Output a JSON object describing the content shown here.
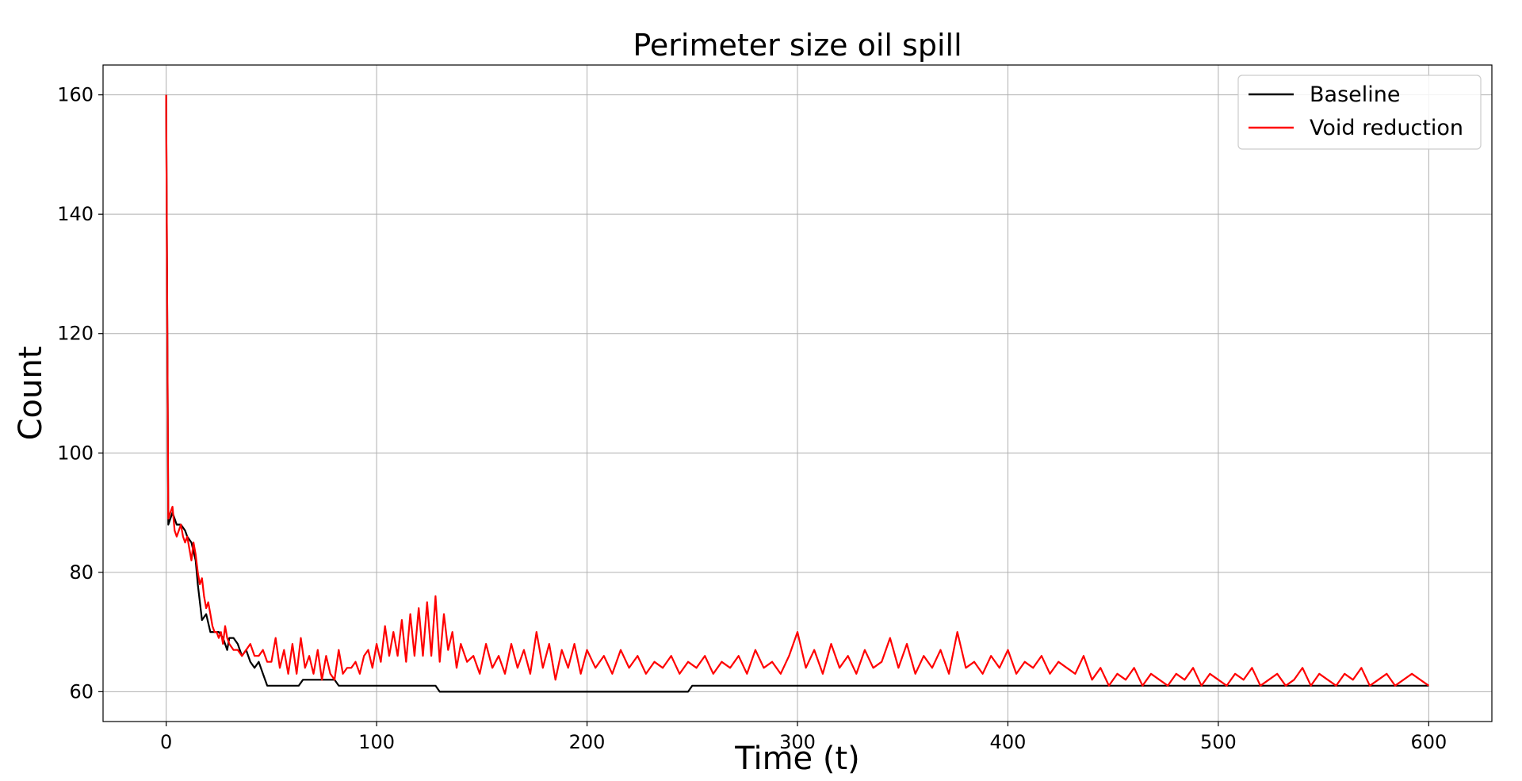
{
  "chart_data": {
    "type": "line",
    "title": "Perimeter size oil spill",
    "xlabel": "Time (t)",
    "ylabel": "Count",
    "xlim": [
      -30,
      630
    ],
    "ylim": [
      55,
      165
    ],
    "xticks": [
      0,
      100,
      200,
      300,
      400,
      500,
      600
    ],
    "yticks": [
      60,
      80,
      100,
      120,
      140,
      160
    ],
    "grid": true,
    "legend_position": "top-right",
    "series": [
      {
        "name": "Baseline",
        "color": "#000000",
        "x": [
          0,
          1,
          3,
          5,
          7,
          9,
          10,
          12,
          14,
          15,
          17,
          19,
          21,
          23,
          25,
          27,
          29,
          30,
          32,
          34,
          36,
          38,
          40,
          42,
          44,
          46,
          48,
          50,
          60,
          63,
          65,
          75,
          80,
          82,
          100,
          115,
          128,
          130,
          150,
          200,
          248,
          250,
          300,
          350,
          400,
          450,
          500,
          550,
          600
        ],
        "values": [
          160,
          88,
          90,
          88,
          88,
          87,
          86,
          85,
          82,
          78,
          72,
          73,
          70,
          70,
          70,
          69,
          67,
          69,
          69,
          68,
          66,
          67,
          65,
          64,
          65,
          63,
          61,
          61,
          61,
          61,
          62,
          62,
          62,
          61,
          61,
          61,
          61,
          60,
          60,
          60,
          60,
          61,
          61,
          61,
          61,
          61,
          61,
          61,
          61
        ]
      },
      {
        "name": "Void reduction",
        "color": "#ff0000",
        "x": [
          0,
          1,
          2,
          3,
          4,
          5,
          6,
          7,
          8,
          9,
          10,
          11,
          12,
          13,
          14,
          15,
          16,
          17,
          18,
          19,
          20,
          21,
          22,
          23,
          24,
          25,
          26,
          27,
          28,
          29,
          30,
          32,
          34,
          36,
          38,
          40,
          42,
          44,
          46,
          48,
          50,
          52,
          54,
          56,
          58,
          60,
          62,
          64,
          66,
          68,
          70,
          72,
          74,
          76,
          78,
          80,
          82,
          84,
          86,
          88,
          90,
          92,
          94,
          96,
          98,
          100,
          102,
          104,
          106,
          108,
          110,
          112,
          114,
          116,
          118,
          120,
          122,
          124,
          126,
          128,
          130,
          132,
          134,
          136,
          138,
          140,
          143,
          146,
          149,
          152,
          155,
          158,
          161,
          164,
          167,
          170,
          173,
          176,
          179,
          182,
          185,
          188,
          191,
          194,
          197,
          200,
          204,
          208,
          212,
          216,
          220,
          224,
          228,
          232,
          236,
          240,
          244,
          248,
          252,
          256,
          260,
          264,
          268,
          272,
          276,
          280,
          284,
          288,
          292,
          296,
          300,
          304,
          308,
          312,
          316,
          320,
          324,
          328,
          332,
          336,
          340,
          344,
          348,
          352,
          356,
          360,
          364,
          368,
          372,
          376,
          380,
          384,
          388,
          392,
          396,
          400,
          404,
          408,
          412,
          416,
          420,
          424,
          428,
          432,
          436,
          440,
          444,
          448,
          452,
          456,
          460,
          464,
          468,
          472,
          476,
          480,
          484,
          488,
          492,
          496,
          500,
          504,
          508,
          512,
          516,
          520,
          524,
          528,
          532,
          536,
          540,
          544,
          548,
          552,
          556,
          560,
          564,
          568,
          572,
          576,
          580,
          584,
          588,
          592,
          596,
          600
        ],
        "values": [
          160,
          89,
          90,
          91,
          87,
          86,
          87,
          88,
          86,
          85,
          86,
          84,
          82,
          85,
          83,
          80,
          78,
          79,
          76,
          74,
          75,
          73,
          71,
          70,
          70,
          69,
          70,
          68,
          71,
          69,
          68,
          67,
          67,
          66,
          67,
          68,
          66,
          66,
          67,
          65,
          65,
          69,
          64,
          67,
          63,
          68,
          63,
          69,
          64,
          66,
          63,
          67,
          62,
          66,
          63,
          62,
          67,
          63,
          64,
          64,
          65,
          63,
          66,
          67,
          64,
          68,
          65,
          71,
          66,
          70,
          66,
          72,
          65,
          73,
          66,
          74,
          66,
          75,
          66,
          76,
          65,
          73,
          67,
          70,
          64,
          68,
          65,
          66,
          63,
          68,
          64,
          66,
          63,
          68,
          64,
          67,
          63,
          70,
          64,
          68,
          62,
          67,
          64,
          68,
          63,
          67,
          64,
          66,
          63,
          67,
          64,
          66,
          63,
          65,
          64,
          66,
          63,
          65,
          64,
          66,
          63,
          65,
          64,
          66,
          63,
          67,
          64,
          65,
          63,
          66,
          70,
          64,
          67,
          63,
          68,
          64,
          66,
          63,
          67,
          64,
          65,
          69,
          64,
          68,
          63,
          66,
          64,
          67,
          63,
          70,
          64,
          65,
          63,
          66,
          64,
          67,
          63,
          65,
          64,
          66,
          63,
          65,
          64,
          63,
          66,
          62,
          64,
          61,
          63,
          62,
          64,
          61,
          63,
          62,
          61,
          63,
          62,
          64,
          61,
          63,
          62,
          61,
          63,
          62,
          64,
          61,
          62,
          63,
          61,
          62,
          64,
          61,
          63,
          62,
          61,
          63,
          62,
          64,
          61,
          62,
          63,
          61,
          62,
          63,
          62,
          61
        ]
      }
    ]
  }
}
